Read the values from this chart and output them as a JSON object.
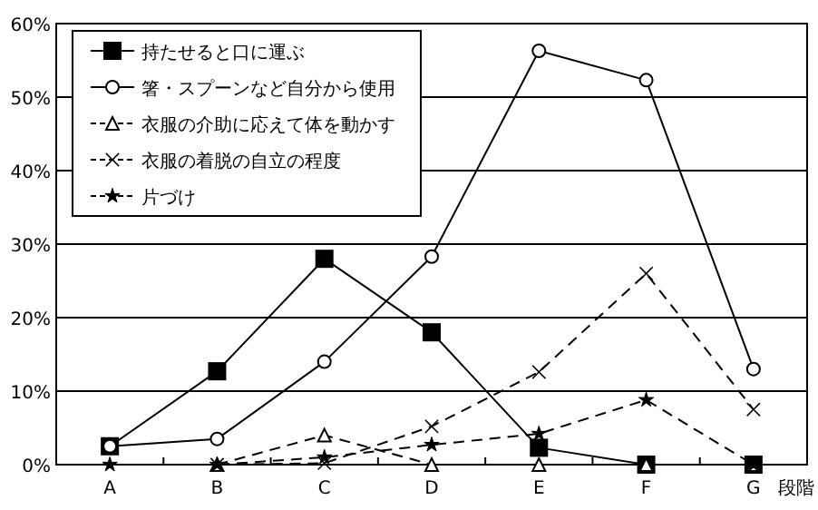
{
  "chart_data": {
    "type": "line",
    "xlabel": "段階",
    "categories": [
      "A",
      "B",
      "C",
      "D",
      "E",
      "F",
      "G"
    ],
    "ylim": [
      0,
      60
    ],
    "yticks": [
      {
        "value": 0,
        "label": "0%"
      },
      {
        "value": 10,
        "label": "10%"
      },
      {
        "value": 20,
        "label": "20%"
      },
      {
        "value": 30,
        "label": "30%"
      },
      {
        "value": 40,
        "label": "40%"
      },
      {
        "value": 50,
        "label": "50%"
      },
      {
        "value": 60,
        "label": "60%"
      }
    ],
    "grid": "y",
    "legend": "top left",
    "series": [
      {
        "name": "持たせると口に運ぶ",
        "color": "#000000",
        "marker": "square",
        "line_style": "solid",
        "values": [
          2.5,
          12.7,
          28,
          18,
          2.3,
          0,
          0
        ]
      },
      {
        "name": "箸・スプーンなど自分から使用",
        "color": "#000000",
        "marker": "circle",
        "line_style": "solid",
        "values": [
          2.5,
          3.5,
          14,
          28.3,
          56.3,
          52.3,
          13
        ]
      },
      {
        "name": "衣服の介助に応えて体を動かす",
        "color": "#000000",
        "marker": "triangle",
        "line_style": "dashed",
        "values": [
          null,
          0,
          4,
          0,
          0,
          0,
          0
        ]
      },
      {
        "name": "衣服の着脱の自立の程度",
        "color": "#000000",
        "marker": "cross",
        "line_style": "dashed",
        "values": [
          null,
          0,
          0.2,
          5.2,
          12.6,
          26,
          7.5
        ]
      },
      {
        "name": "片づけ",
        "color": "#000000",
        "marker": "star",
        "line_style": "dashed",
        "values": [
          0,
          0,
          1,
          2.7,
          4.2,
          8.8,
          0
        ]
      }
    ]
  }
}
